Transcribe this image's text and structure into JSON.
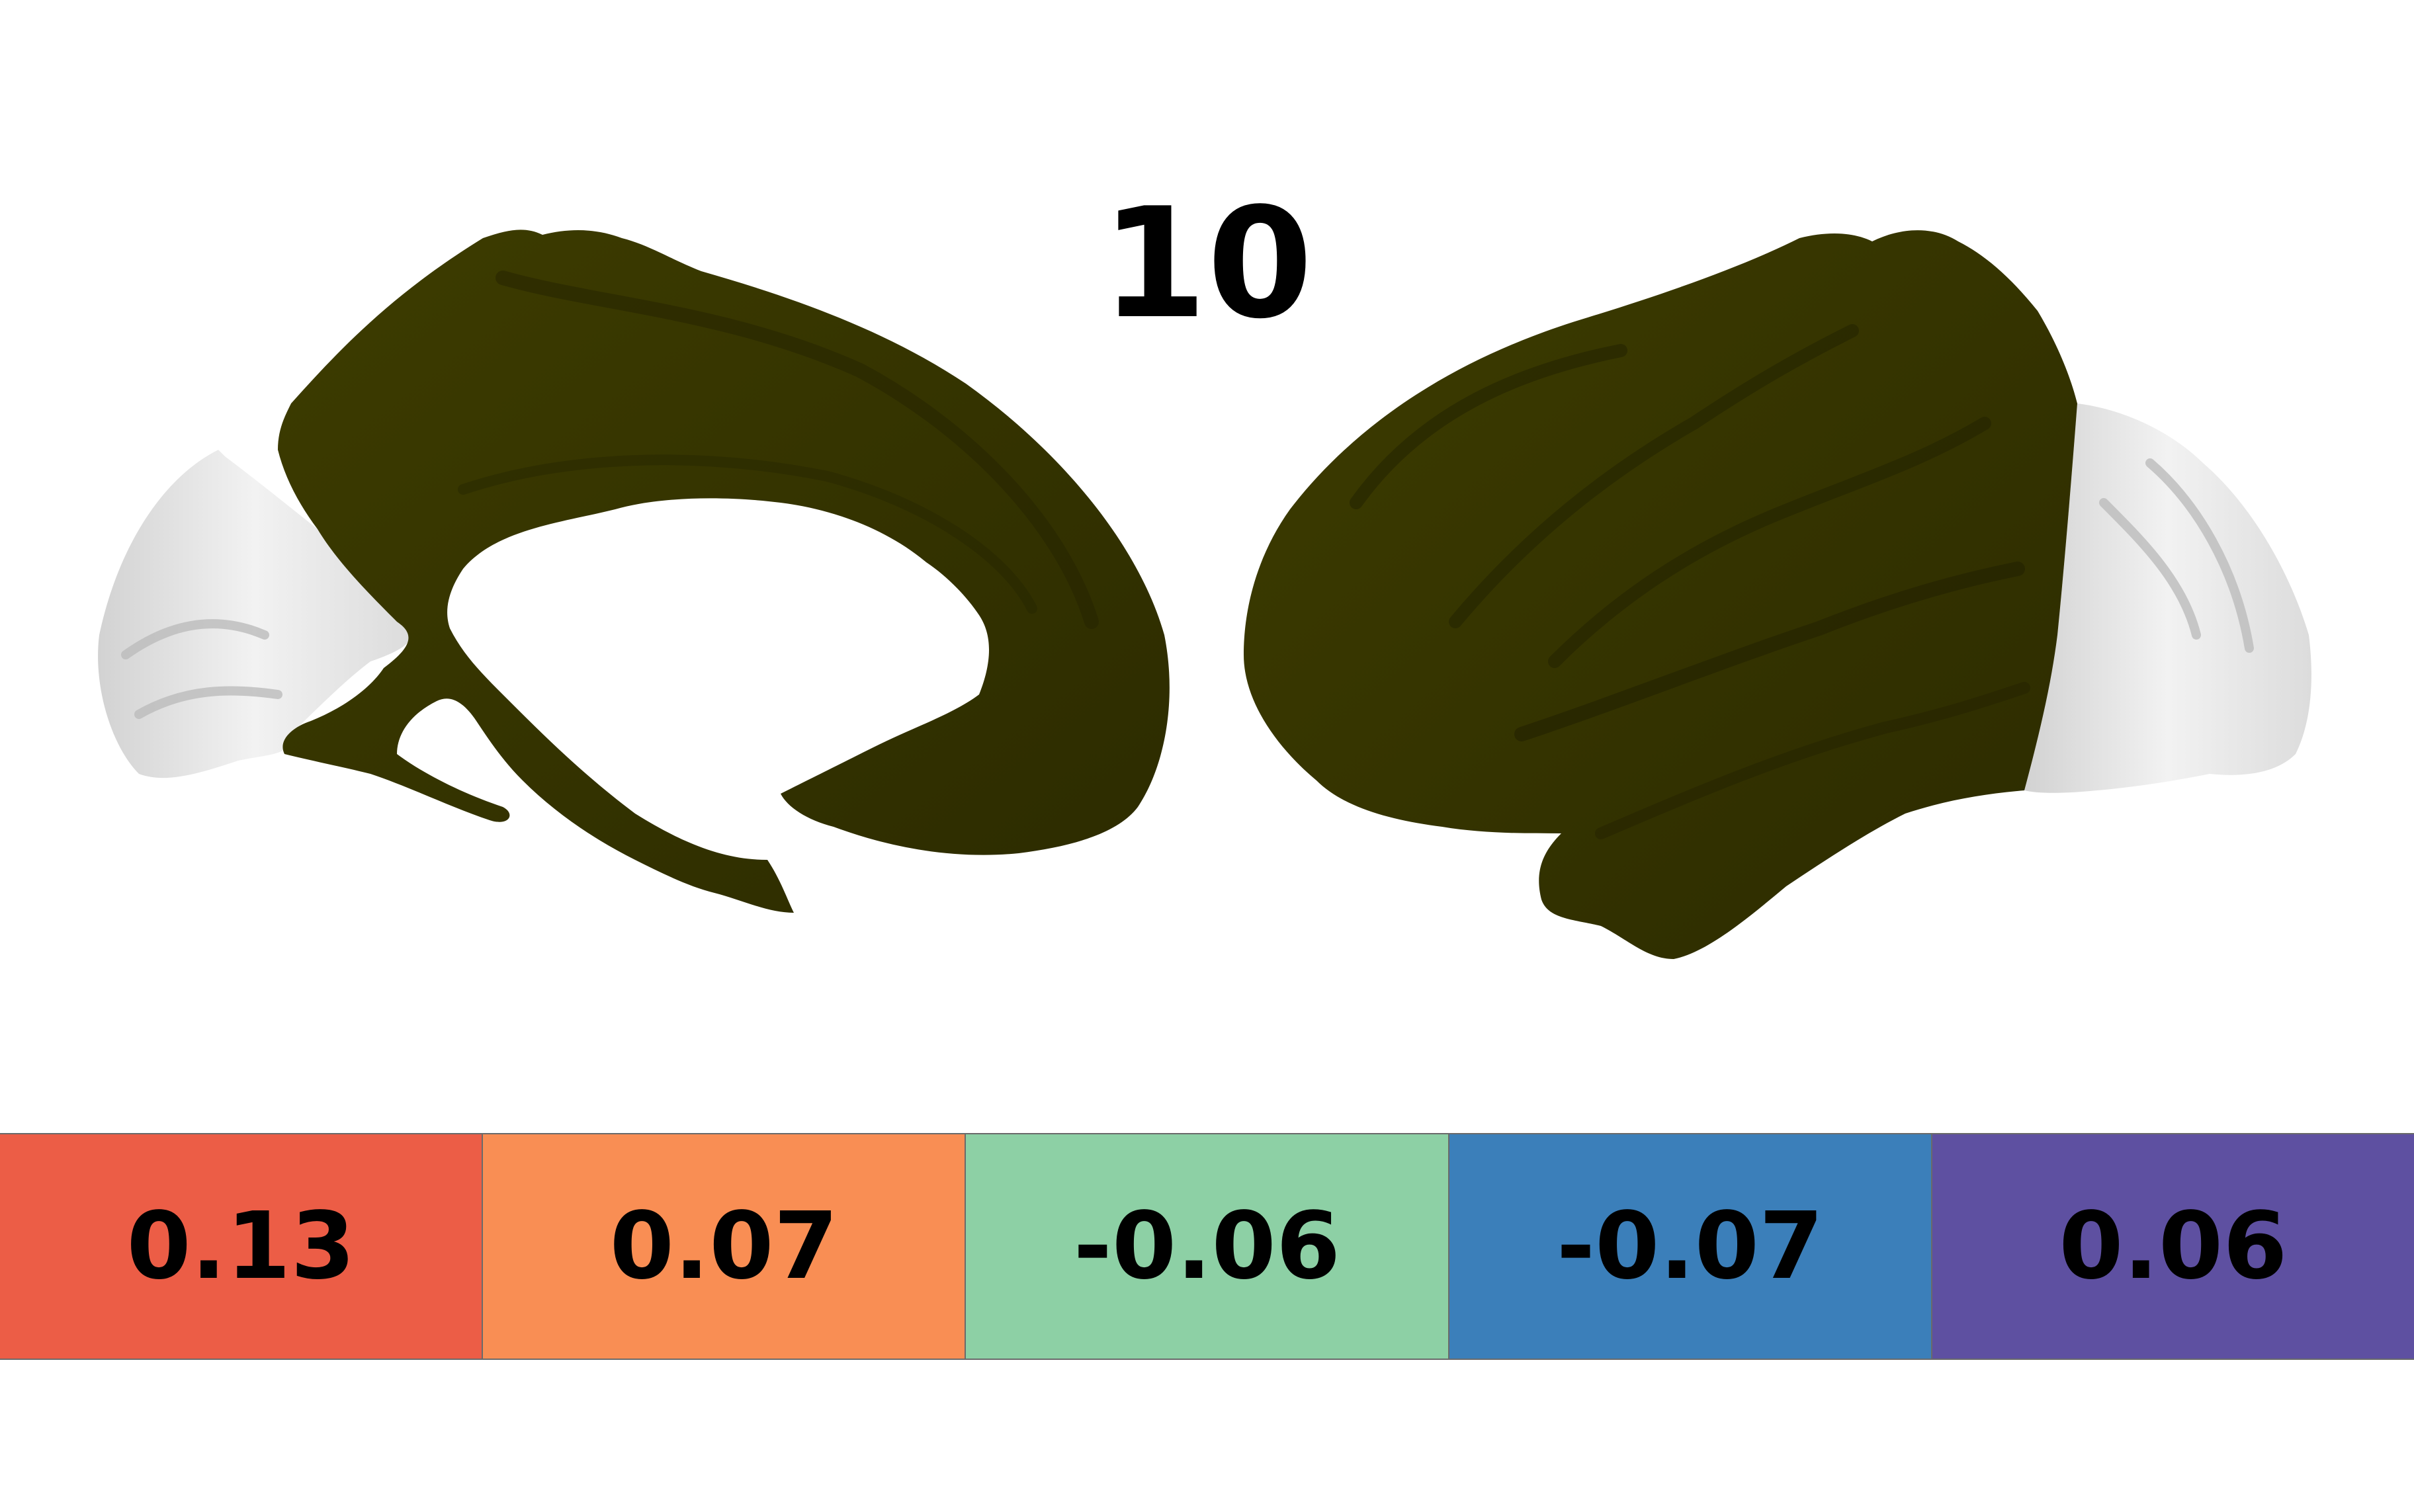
{
  "title": "10",
  "colors": {
    "region_fill": "#3b3a00",
    "region_shade": "#2a2900",
    "surface_fill": "#e6e6e6",
    "surface_shade": "#c8c8c8",
    "background": "#ffffff"
  },
  "legend": [
    {
      "value": "0.13",
      "color": "#ec5d46"
    },
    {
      "value": "0.07",
      "color": "#f98e54"
    },
    {
      "value": "-0.06",
      "color": "#8dd0a5"
    },
    {
      "value": "-0.07",
      "color": "#3b7fba"
    },
    {
      "value": "0.06",
      "color": "#5e50a1"
    }
  ]
}
